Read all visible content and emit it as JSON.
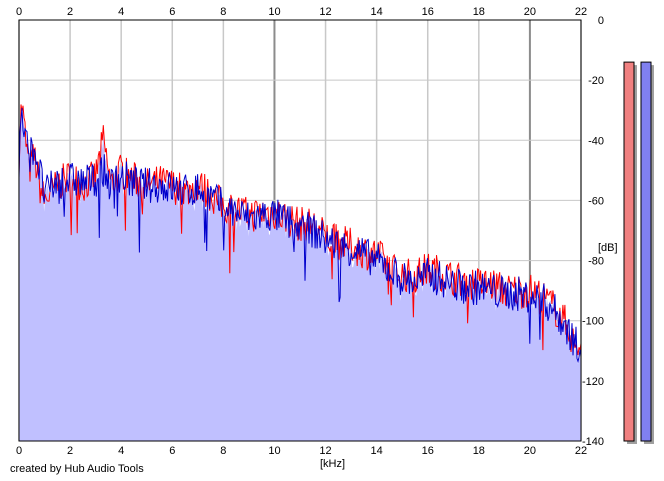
{
  "footer": {
    "credit": "created by Hub Audio Tools"
  },
  "colors": {
    "background": "#ffffff",
    "grid": "#c8c8c8",
    "grid_major": "#8c8c8c",
    "fill": "#c0c0ff",
    "left_channel": "#ff0000",
    "right_channel": "#0000cc",
    "meter_left": "#f08080",
    "meter_right": "#8080f0"
  },
  "chart_data": {
    "type": "area",
    "title": "",
    "xlabel": "[kHz]",
    "ylabel": "[dB]",
    "xlim": [
      0,
      22
    ],
    "ylim": [
      -140,
      0
    ],
    "x_ticks": [
      0,
      2,
      4,
      6,
      8,
      10,
      12,
      14,
      16,
      18,
      20,
      22
    ],
    "y_ticks": [
      0,
      -20,
      -40,
      -60,
      -80,
      -100,
      -120,
      -140
    ],
    "x_tick_labels_top": [
      "0",
      "2",
      "4",
      "6",
      "8",
      "10",
      "12",
      "14",
      "16",
      "18",
      "20",
      "22"
    ],
    "x_tick_labels_bottom": [
      "0",
      "2",
      "4",
      "6",
      "8",
      "10",
      "12",
      "14",
      "16",
      "18",
      "20",
      "22"
    ],
    "y_tick_labels": [
      "0",
      "-20",
      "-40",
      "-60",
      "-80",
      "-100",
      "-120",
      "-140"
    ],
    "grid": true,
    "series": [
      {
        "color": "#ff0000",
        "x": [
          0,
          0.1,
          0.2,
          0.4,
          0.6,
          0.8,
          1,
          1.5,
          2,
          2.5,
          3,
          3.3,
          3.6,
          4,
          4.5,
          5,
          5.5,
          6,
          6.5,
          7,
          7.5,
          8,
          8.5,
          9,
          9.5,
          10,
          10.5,
          11,
          11.5,
          12,
          12.5,
          13,
          13.5,
          14,
          14.5,
          15,
          15.5,
          16,
          16.5,
          17,
          17.5,
          18,
          18.5,
          19,
          19.5,
          20,
          20.5,
          21,
          21.5,
          21.8,
          22
        ],
        "y": [
          -45,
          -27,
          -35,
          -50,
          -45,
          -55,
          -60,
          -55,
          -52,
          -55,
          -52,
          -40,
          -55,
          -50,
          -53,
          -55,
          -54,
          -55,
          -57,
          -55,
          -58,
          -62,
          -63,
          -65,
          -64,
          -64,
          -66,
          -68,
          -68,
          -72,
          -74,
          -75,
          -77,
          -78,
          -82,
          -85,
          -85,
          -83,
          -84,
          -86,
          -87,
          -88,
          -88,
          -90,
          -90,
          -90,
          -92,
          -96,
          -102,
          -110,
          -108
        ]
      },
      {
        "color": "#0000cc",
        "x": [
          0,
          0.1,
          0.2,
          0.4,
          0.6,
          0.8,
          1,
          1.5,
          2,
          2.5,
          3,
          3.3,
          3.6,
          4,
          4.5,
          5,
          5.5,
          6,
          6.5,
          7,
          7.5,
          8,
          8.5,
          9,
          9.5,
          10,
          10.5,
          11,
          11.5,
          12,
          12.5,
          13,
          13.5,
          14,
          14.5,
          15,
          15.5,
          16,
          16.5,
          17,
          17.5,
          18,
          18.5,
          19,
          19.5,
          20,
          20.5,
          21,
          21.5,
          21.8,
          22
        ],
        "y": [
          -48,
          -30,
          -38,
          -45,
          -42,
          -50,
          -58,
          -54,
          -53,
          -54,
          -53,
          -50,
          -55,
          -52,
          -54,
          -55,
          -55,
          -56,
          -57,
          -56,
          -59,
          -62,
          -64,
          -66,
          -65,
          -65,
          -67,
          -69,
          -70,
          -73,
          -75,
          -76,
          -78,
          -80,
          -83,
          -86,
          -87,
          -85,
          -86,
          -88,
          -89,
          -89,
          -90,
          -91,
          -91,
          -92,
          -93,
          -97,
          -103,
          -108,
          -107
        ]
      }
    ]
  },
  "level_meters": [
    {
      "channel": "left",
      "level_db": -14
    },
    {
      "channel": "right",
      "level_db": -14
    }
  ]
}
